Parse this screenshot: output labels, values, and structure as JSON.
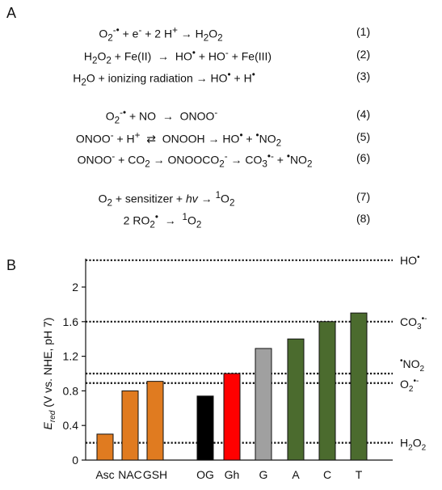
{
  "panels": {
    "a": "A",
    "b": "B"
  },
  "equations": [
    {
      "num": "(1)",
      "html": "O<sub>2</sub><sup>-•</sup> + e<sup>-</sup> + 2 H<sup>+</sup> → H<sub>2</sub>O<sub>2</sub>"
    },
    {
      "num": "(2)",
      "html": "H<sub>2</sub>O<sub>2</sub> + Fe(II) &nbsp;→&nbsp; HO<sup>•</sup> + HO<sup>-</sup> + Fe(III)"
    },
    {
      "num": "(3)",
      "html": "H<sub>2</sub>O + ionizing radiation → HO<sup>•</sup> + H<sup>•</sup>"
    },
    {
      "num": "(4)",
      "html": "O<sub>2</sub><sup>-•</sup> + NO &nbsp;→&nbsp; ONOO<sup>-</sup>"
    },
    {
      "num": "(5)",
      "html": "ONOO<sup>-</sup> + H<sup>+</sup> &nbsp;⇄&nbsp; ONOOH → HO<sup>•</sup> + <sup>•</sup>NO<sub>2</sub>"
    },
    {
      "num": "(6)",
      "html": "ONOO<sup>-</sup> + CO<sub>2</sub> → ONOOCO<sub>2</sub><sup>-</sup> → CO<sub>3</sub><sup>•-</sup> + <sup>•</sup>NO<sub>2</sub>"
    },
    {
      "num": "(7)",
      "html": "O<sub>2</sub> + sensitizer + <i>hv</i> → <sup>1</sup>O<sub>2</sub>"
    },
    {
      "num": "(8)",
      "html": "2 RO<sub>2</sub><sup>•</sup> &nbsp;→&nbsp; <sup>1</sup>O<sub>2</sub>"
    }
  ],
  "chart_data": {
    "type": "bar",
    "ylabel": "E_red (V vs. NHE, pH 7)",
    "ylim": [
      0,
      2.3
    ],
    "yticks": [
      "0",
      "0.4",
      "0.8",
      "1.2",
      "1.6",
      "2"
    ],
    "categories": [
      "Asc",
      "NAC",
      "GSH",
      "OG",
      "Gh",
      "G",
      "A",
      "C",
      "T"
    ],
    "values": [
      0.3,
      0.8,
      0.91,
      0.74,
      1.0,
      1.29,
      1.4,
      1.6,
      1.7
    ],
    "colors": [
      "#e07b20",
      "#e07b20",
      "#e07b20",
      "#000000",
      "#ff0000",
      "#a0a0a0",
      "#4b6b2e",
      "#4b6b2e",
      "#4b6b2e"
    ],
    "reference_lines": [
      {
        "label": "HO•",
        "value": 2.31
      },
      {
        "label": "CO3•-",
        "value": 1.6
      },
      {
        "label": "•NO2",
        "value": 1.0
      },
      {
        "label": "O2•-",
        "value": 0.89
      },
      {
        "label": "H2O2",
        "value": 0.2
      }
    ]
  }
}
